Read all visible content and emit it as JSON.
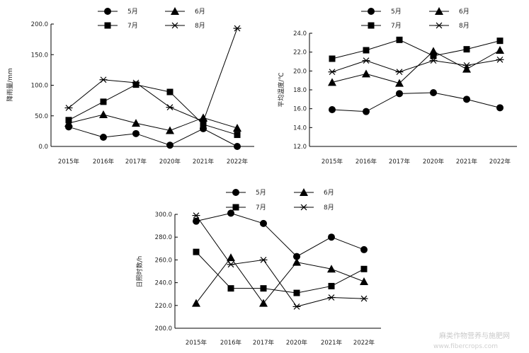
{
  "chart_data": [
    {
      "type": "line",
      "ylabel": "降雨量/mm",
      "ylim": [
        0,
        200
      ],
      "yticks": [
        "0.0",
        "50.0",
        "100.0",
        "150.0",
        "200.0"
      ],
      "categories": [
        "2015年",
        "2016年",
        "2017年",
        "2020年",
        "2021年",
        "2022年"
      ],
      "series": [
        {
          "name": "5月",
          "marker": "circle",
          "values": [
            32,
            15,
            21,
            2,
            29,
            0
          ]
        },
        {
          "name": "6月",
          "marker": "triangle",
          "values": [
            38,
            52,
            38,
            26,
            47,
            30
          ]
        },
        {
          "name": "7月",
          "marker": "square",
          "values": [
            43,
            73,
            101,
            89,
            36,
            19
          ]
        },
        {
          "name": "8月",
          "marker": "star",
          "values": [
            63,
            109,
            104,
            64,
            41,
            193
          ]
        }
      ]
    },
    {
      "type": "line",
      "ylabel": "平均温度/℃",
      "ylim": [
        12,
        24
      ],
      "yticks": [
        "12.0",
        "14.0",
        "16.0",
        "18.0",
        "20.0",
        "22.0",
        "24.0"
      ],
      "categories": [
        "2015年",
        "2016年",
        "2017年",
        "2020年",
        "2021年",
        "2022年"
      ],
      "series": [
        {
          "name": "5月",
          "marker": "circle",
          "values": [
            15.9,
            15.7,
            17.6,
            17.7,
            17.0,
            16.1
          ]
        },
        {
          "name": "6月",
          "marker": "triangle",
          "values": [
            18.8,
            19.7,
            18.7,
            22.1,
            20.2,
            22.2
          ]
        },
        {
          "name": "7月",
          "marker": "square",
          "values": [
            21.3,
            22.2,
            23.3,
            21.6,
            22.3,
            23.2
          ]
        },
        {
          "name": "8月",
          "marker": "star",
          "values": [
            19.9,
            21.1,
            19.9,
            21.1,
            20.6,
            21.2
          ]
        }
      ]
    },
    {
      "type": "line",
      "ylabel": "日照时数/h",
      "ylim": [
        200,
        300
      ],
      "yticks": [
        "200.0",
        "220.0",
        "240.0",
        "260.0",
        "280.0",
        "300.0"
      ],
      "categories": [
        "2015年",
        "2016年",
        "2017年",
        "2020年",
        "2021年",
        "2022年"
      ],
      "series": [
        {
          "name": "5月",
          "marker": "circle",
          "values": [
            294,
            301,
            292,
            263,
            280,
            269
          ]
        },
        {
          "name": "6月",
          "marker": "triangle",
          "values": [
            222,
            262,
            222,
            258,
            252,
            241
          ]
        },
        {
          "name": "7月",
          "marker": "square",
          "values": [
            267,
            235,
            235,
            231,
            237,
            252
          ]
        },
        {
          "name": "8月",
          "marker": "star",
          "values": [
            299,
            256,
            260,
            219,
            227,
            226
          ]
        }
      ]
    }
  ],
  "watermark": {
    "line1": "麻类作物营养与施肥网",
    "line2": "www.fibercrops.com"
  }
}
